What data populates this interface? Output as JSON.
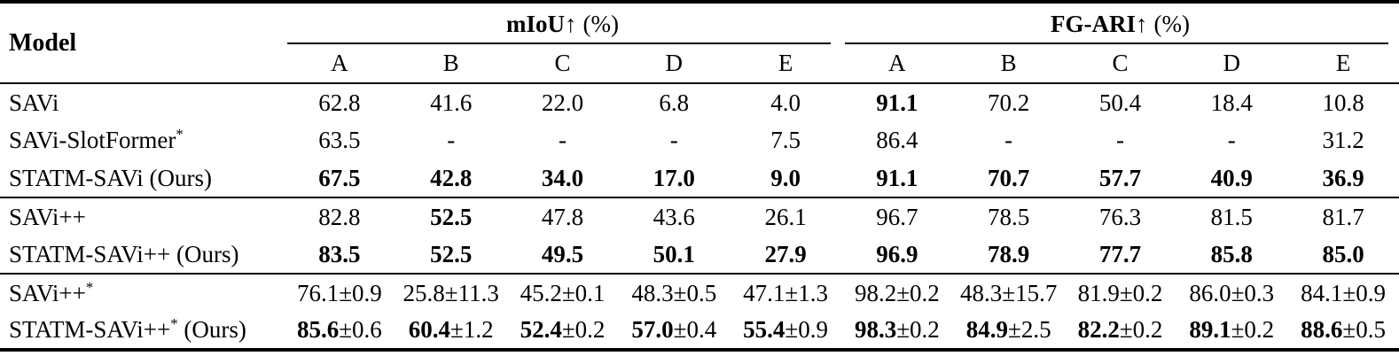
{
  "colors": {
    "background": "#ffffff",
    "text": "#000000",
    "rule": "#000000"
  },
  "table": {
    "model_header": "Model",
    "groups": [
      {
        "label": "mIoU",
        "arrow": "↑",
        "unit": "(%)",
        "subcols": [
          "A",
          "B",
          "C",
          "D",
          "E"
        ]
      },
      {
        "label": "FG-ARI",
        "arrow": "↑",
        "unit": "(%)",
        "subcols": [
          "A",
          "B",
          "C",
          "D",
          "E"
        ]
      }
    ],
    "rows": [
      {
        "model": "SAVi",
        "sup": "",
        "suffix": "",
        "rule_after": false,
        "miou": [
          {
            "main": "62.8",
            "pm": "",
            "bold": false
          },
          {
            "main": "41.6",
            "pm": "",
            "bold": false
          },
          {
            "main": "22.0",
            "pm": "",
            "bold": false
          },
          {
            "main": "6.8",
            "pm": "",
            "bold": false
          },
          {
            "main": "4.0",
            "pm": "",
            "bold": false
          }
        ],
        "fgari": [
          {
            "main": "91.1",
            "pm": "",
            "bold": true
          },
          {
            "main": "70.2",
            "pm": "",
            "bold": false
          },
          {
            "main": "50.4",
            "pm": "",
            "bold": false
          },
          {
            "main": "18.4",
            "pm": "",
            "bold": false
          },
          {
            "main": "10.8",
            "pm": "",
            "bold": false
          }
        ]
      },
      {
        "model": "SAVi-SlotFormer",
        "sup": "*",
        "suffix": "",
        "rule_after": false,
        "miou": [
          {
            "main": "63.5",
            "pm": "",
            "bold": false
          },
          {
            "main": "-",
            "pm": "",
            "bold": false
          },
          {
            "main": "-",
            "pm": "",
            "bold": false
          },
          {
            "main": "-",
            "pm": "",
            "bold": false
          },
          {
            "main": "7.5",
            "pm": "",
            "bold": false
          }
        ],
        "fgari": [
          {
            "main": "86.4",
            "pm": "",
            "bold": false
          },
          {
            "main": "-",
            "pm": "",
            "bold": false
          },
          {
            "main": "-",
            "pm": "",
            "bold": false
          },
          {
            "main": "-",
            "pm": "",
            "bold": false
          },
          {
            "main": "31.2",
            "pm": "",
            "bold": false
          }
        ]
      },
      {
        "model": "STATM-SAVi",
        "sup": "",
        "suffix": "(Ours)",
        "rule_after": true,
        "miou": [
          {
            "main": "67.5",
            "pm": "",
            "bold": true
          },
          {
            "main": "42.8",
            "pm": "",
            "bold": true
          },
          {
            "main": "34.0",
            "pm": "",
            "bold": true
          },
          {
            "main": "17.0",
            "pm": "",
            "bold": true
          },
          {
            "main": "9.0",
            "pm": "",
            "bold": true
          }
        ],
        "fgari": [
          {
            "main": "91.1",
            "pm": "",
            "bold": true
          },
          {
            "main": "70.7",
            "pm": "",
            "bold": true
          },
          {
            "main": "57.7",
            "pm": "",
            "bold": true
          },
          {
            "main": "40.9",
            "pm": "",
            "bold": true
          },
          {
            "main": "36.9",
            "pm": "",
            "bold": true
          }
        ]
      },
      {
        "model": "SAVi++",
        "sup": "",
        "suffix": "",
        "rule_after": false,
        "miou": [
          {
            "main": "82.8",
            "pm": "",
            "bold": false
          },
          {
            "main": "52.5",
            "pm": "",
            "bold": true
          },
          {
            "main": "47.8",
            "pm": "",
            "bold": false
          },
          {
            "main": "43.6",
            "pm": "",
            "bold": false
          },
          {
            "main": "26.1",
            "pm": "",
            "bold": false
          }
        ],
        "fgari": [
          {
            "main": "96.7",
            "pm": "",
            "bold": false
          },
          {
            "main": "78.5",
            "pm": "",
            "bold": false
          },
          {
            "main": "76.3",
            "pm": "",
            "bold": false
          },
          {
            "main": "81.5",
            "pm": "",
            "bold": false
          },
          {
            "main": "81.7",
            "pm": "",
            "bold": false
          }
        ]
      },
      {
        "model": "STATM-SAVi++",
        "sup": "",
        "suffix": "(Ours)",
        "rule_after": true,
        "miou": [
          {
            "main": "83.5",
            "pm": "",
            "bold": true
          },
          {
            "main": "52.5",
            "pm": "",
            "bold": true
          },
          {
            "main": "49.5",
            "pm": "",
            "bold": true
          },
          {
            "main": "50.1",
            "pm": "",
            "bold": true
          },
          {
            "main": "27.9",
            "pm": "",
            "bold": true
          }
        ],
        "fgari": [
          {
            "main": "96.9",
            "pm": "",
            "bold": true
          },
          {
            "main": "78.9",
            "pm": "",
            "bold": true
          },
          {
            "main": "77.7",
            "pm": "",
            "bold": true
          },
          {
            "main": "85.8",
            "pm": "",
            "bold": true
          },
          {
            "main": "85.0",
            "pm": "",
            "bold": true
          }
        ]
      },
      {
        "model": "SAVi++",
        "sup": "*",
        "suffix": "",
        "rule_after": false,
        "miou": [
          {
            "main": "76.1",
            "pm": "0.9",
            "bold": false
          },
          {
            "main": "25.8",
            "pm": "11.3",
            "bold": false
          },
          {
            "main": "45.2",
            "pm": "0.1",
            "bold": false
          },
          {
            "main": "48.3",
            "pm": "0.5",
            "bold": false
          },
          {
            "main": "47.1",
            "pm": "1.3",
            "bold": false
          }
        ],
        "fgari": [
          {
            "main": "98.2",
            "pm": "0.2",
            "bold": false
          },
          {
            "main": "48.3",
            "pm": "15.7",
            "bold": false
          },
          {
            "main": "81.9",
            "pm": "0.2",
            "bold": false
          },
          {
            "main": "86.0",
            "pm": "0.3",
            "bold": false
          },
          {
            "main": "84.1",
            "pm": "0.9",
            "bold": false
          }
        ]
      },
      {
        "model": "STATM-SAVi++",
        "sup": "*",
        "suffix": "(Ours)",
        "rule_after": false,
        "miou": [
          {
            "main": "85.6",
            "pm": "0.6",
            "bold": true
          },
          {
            "main": "60.4",
            "pm": "1.2",
            "bold": true
          },
          {
            "main": "52.4",
            "pm": "0.2",
            "bold": true
          },
          {
            "main": "57.0",
            "pm": "0.4",
            "bold": true
          },
          {
            "main": "55.4",
            "pm": "0.9",
            "bold": true
          }
        ],
        "fgari": [
          {
            "main": "98.3",
            "pm": "0.2",
            "bold": true
          },
          {
            "main": "84.9",
            "pm": "2.5",
            "bold": true
          },
          {
            "main": "82.2",
            "pm": "0.2",
            "bold": true
          },
          {
            "main": "89.1",
            "pm": "0.2",
            "bold": true
          },
          {
            "main": "88.6",
            "pm": "0.5",
            "bold": true
          }
        ]
      }
    ]
  }
}
